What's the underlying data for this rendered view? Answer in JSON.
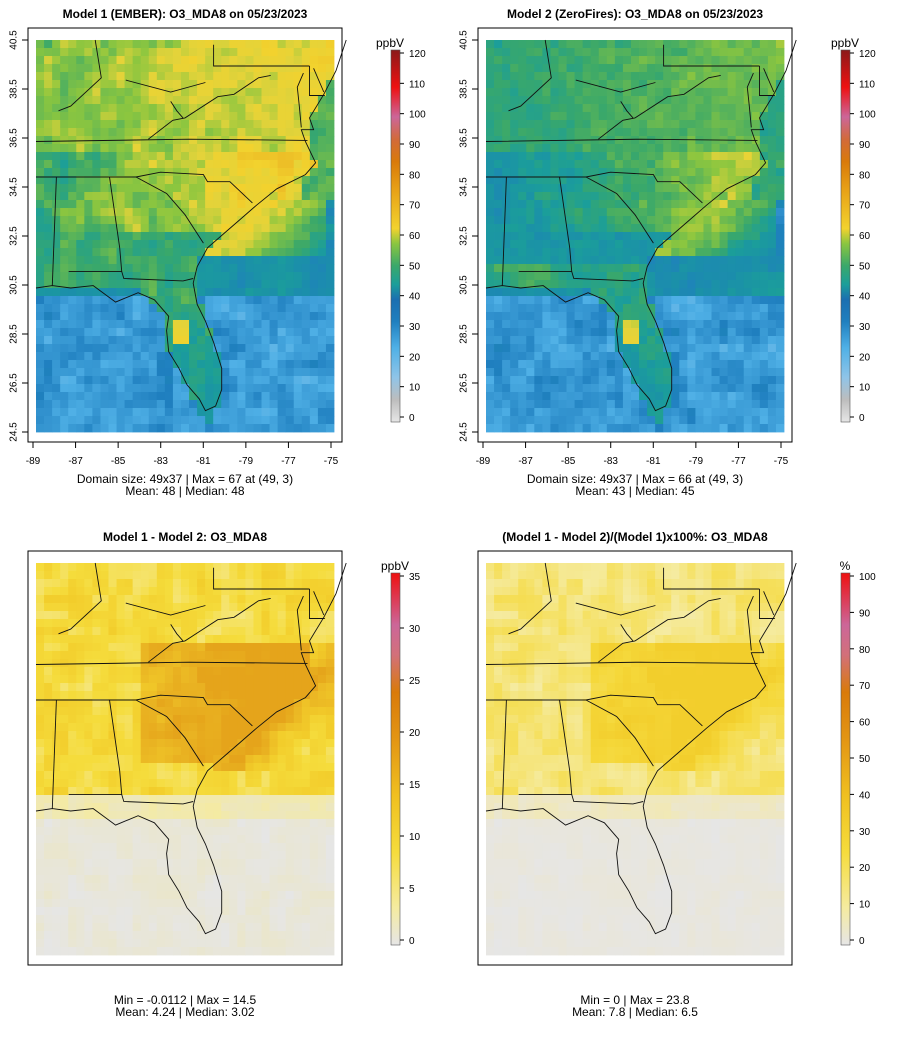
{
  "figure": {
    "panels": [
      {
        "title": "Model 1 (EMBER): O3_MDA8 on 05/23/2023",
        "legend_unit": "ppbV",
        "stats_line1": "Domain size: 49x37 | Max = 67 at (49, 3)",
        "stats_line2": "Mean: 48 |  Median: 48"
      },
      {
        "title": "Model 2 (ZeroFires): O3_MDA8 on 05/23/2023",
        "legend_unit": "ppbV",
        "stats_line1": "Domain size: 49x37 | Max = 66 at (49, 3)",
        "stats_line2": "Mean: 43 |  Median: 45"
      },
      {
        "title": "Model 1 - Model 2: O3_MDA8",
        "legend_unit": "ppbV",
        "stats_line1": "Min = -0.0112 | Max = 14.5",
        "stats_line2": "Mean: 4.24 |  Median: 3.02"
      },
      {
        "title": "(Model 1 - Model 2)/(Model 1)x100%: O3_MDA8",
        "legend_unit": "%",
        "stats_line1": "Min = 0 | Max = 23.8",
        "stats_line2": "Mean: 7.8 |  Median: 6.5"
      }
    ]
  },
  "chart_data": [
    {
      "type": "heatmap",
      "title": "Model 1 (EMBER): O3_MDA8 on 05/23/2023",
      "units": "ppbV",
      "grid_size": [
        49,
        37
      ],
      "x_ticks": [
        "-89",
        "-87",
        "-85",
        "-83",
        "-81",
        "-79",
        "-77",
        "-75"
      ],
      "y_ticks": [
        "24.5",
        "26.5",
        "28.5",
        "30.5",
        "32.5",
        "34.5",
        "36.5",
        "38.5",
        "40.5"
      ],
      "xlim": [
        -89,
        -75
      ],
      "ylim": [
        24.5,
        40.5
      ],
      "colorbar_ticks": [
        "0",
        "10",
        "20",
        "30",
        "40",
        "50",
        "60",
        "70",
        "80",
        "90",
        "100",
        "110",
        "120"
      ],
      "colorbar_range": [
        0,
        120
      ],
      "stats": {
        "max": 67,
        "max_at": [
          49,
          3
        ],
        "mean": 48,
        "median": 48
      }
    },
    {
      "type": "heatmap",
      "title": "Model 2 (ZeroFires): O3_MDA8 on 05/23/2023",
      "units": "ppbV",
      "grid_size": [
        49,
        37
      ],
      "x_ticks": [
        "-89",
        "-87",
        "-85",
        "-83",
        "-81",
        "-79",
        "-77",
        "-75"
      ],
      "y_ticks": [
        "24.5",
        "26.5",
        "28.5",
        "30.5",
        "32.5",
        "34.5",
        "36.5",
        "38.5",
        "40.5"
      ],
      "xlim": [
        -89,
        -75
      ],
      "ylim": [
        24.5,
        40.5
      ],
      "colorbar_ticks": [
        "0",
        "10",
        "20",
        "30",
        "40",
        "50",
        "60",
        "70",
        "80",
        "90",
        "100",
        "110",
        "120"
      ],
      "colorbar_range": [
        0,
        120
      ],
      "stats": {
        "max": 66,
        "max_at": [
          49,
          3
        ],
        "mean": 43,
        "median": 45
      }
    },
    {
      "type": "heatmap",
      "title": "Model 1 - Model 2: O3_MDA8",
      "units": "ppbV",
      "colorbar_ticks": [
        "0",
        "5",
        "10",
        "15",
        "20",
        "25",
        "30",
        "35"
      ],
      "colorbar_range": [
        0,
        35
      ],
      "stats": {
        "min": -0.0112,
        "max": 14.5,
        "mean": 4.24,
        "median": 3.02
      }
    },
    {
      "type": "heatmap",
      "title": "(Model 1 - Model 2)/(Model 1)x100%: O3_MDA8",
      "units": "%",
      "colorbar_ticks": [
        "0",
        "10",
        "20",
        "30",
        "40",
        "50",
        "60",
        "70",
        "80",
        "90",
        "100"
      ],
      "colorbar_range": [
        0,
        100
      ],
      "stats": {
        "min": 0,
        "max": 23.8,
        "mean": 7.8,
        "median": 6.5
      }
    }
  ],
  "colors": {
    "ozone_scale": [
      "#d9d9d9",
      "#bdbdbd",
      "#4fb0e6",
      "#3399d6",
      "#1f7fbf",
      "#1b9e9a",
      "#3aa86a",
      "#8cc63f",
      "#f2d22e",
      "#e8a317",
      "#d96a0a",
      "#cc6699",
      "#ee1111",
      "#8b1a1a"
    ],
    "diff_scale": [
      "#e6e6e6",
      "#f5eba0",
      "#f5dc3c",
      "#f0c020",
      "#e8a317",
      "#d98a0a",
      "#cc6699",
      "#ee1111"
    ]
  }
}
